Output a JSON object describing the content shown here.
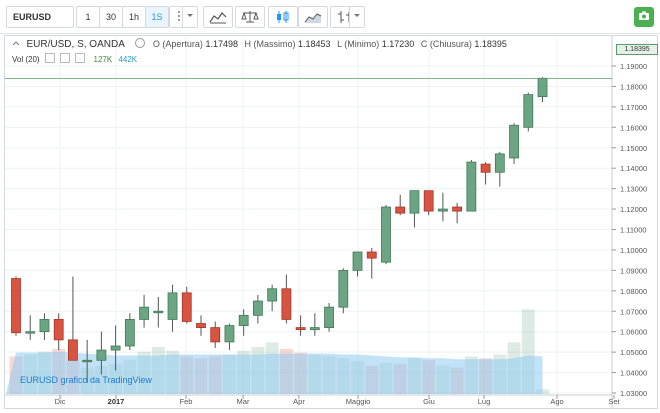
{
  "toolbar": {
    "symbol": "EURUSD",
    "intervals": [
      "1",
      "30",
      "1h",
      "1S"
    ],
    "active_interval": "1S",
    "tools": [
      "indicators-icon",
      "compare-icon",
      "candles-icon",
      "area-chart-icon",
      "bars-icon"
    ]
  },
  "legend": {
    "title": "EUR/USD, S, OANDA",
    "open_label": "O (Apertura)",
    "open": "1.17498",
    "high_label": "H (Massimo)",
    "high": "1.18453",
    "low_label": "L (Minimo)",
    "low": "1.17230",
    "close_label": "C (Chiusura)",
    "close": "1.18395"
  },
  "volume_legend": {
    "label": "Vol (20)",
    "value1": "127K",
    "value2": "442K"
  },
  "watermark": "EURUSD grafico da TradingView",
  "last_price": "1.18395",
  "colors": {
    "up": "#6ba583",
    "down": "#d75442",
    "volume_ma": "#8fcaf0",
    "accent": "#2196f3"
  },
  "chart_data": {
    "type": "candlestick",
    "title": "EUR/USD, S, OANDA",
    "y_axis_ticks": [
      "1.19000",
      "1.18000",
      "1.17000",
      "1.16000",
      "1.15000",
      "1.14000",
      "1.13000",
      "1.12000",
      "1.11000",
      "1.10000",
      "1.09000",
      "1.08000",
      "1.07000",
      "1.06000",
      "1.05000",
      "1.04000",
      "1.03000"
    ],
    "ylim": [
      1.025,
      1.19
    ],
    "x_axis_ticks": [
      {
        "label": "Dic",
        "bold": false
      },
      {
        "label": "2017",
        "bold": true
      },
      {
        "label": "Feb",
        "bold": false
      },
      {
        "label": "Mar",
        "bold": false
      },
      {
        "label": "Apr",
        "bold": false
      },
      {
        "label": "Maggio",
        "bold": false
      },
      {
        "label": "Giu",
        "bold": false
      },
      {
        "label": "Lug",
        "bold": false
      },
      {
        "label": "Ago",
        "bold": false
      },
      {
        "label": "Set",
        "bold": false
      }
    ],
    "candles": [
      {
        "o": 1.086,
        "h": 1.087,
        "l": 1.058,
        "c": 1.0595
      },
      {
        "o": 1.0595,
        "h": 1.068,
        "l": 1.056,
        "c": 1.06
      },
      {
        "o": 1.06,
        "h": 1.069,
        "l": 1.056,
        "c": 1.066
      },
      {
        "o": 1.066,
        "h": 1.069,
        "l": 1.051,
        "c": 1.056
      },
      {
        "o": 1.056,
        "h": 1.087,
        "l": 1.046,
        "c": 1.046
      },
      {
        "o": 1.046,
        "h": 1.056,
        "l": 1.035,
        "c": 1.046
      },
      {
        "o": 1.046,
        "h": 1.06,
        "l": 1.039,
        "c": 1.051
      },
      {
        "o": 1.051,
        "h": 1.063,
        "l": 1.041,
        "c": 1.053
      },
      {
        "o": 1.053,
        "h": 1.069,
        "l": 1.051,
        "c": 1.066
      },
      {
        "o": 1.066,
        "h": 1.078,
        "l": 1.062,
        "c": 1.072
      },
      {
        "o": 1.07,
        "h": 1.077,
        "l": 1.062,
        "c": 1.07
      },
      {
        "o": 1.066,
        "h": 1.083,
        "l": 1.06,
        "c": 1.079
      },
      {
        "o": 1.079,
        "h": 1.082,
        "l": 1.064,
        "c": 1.065
      },
      {
        "o": 1.064,
        "h": 1.068,
        "l": 1.058,
        "c": 1.062
      },
      {
        "o": 1.062,
        "h": 1.065,
        "l": 1.052,
        "c": 1.055
      },
      {
        "o": 1.055,
        "h": 1.064,
        "l": 1.051,
        "c": 1.063
      },
      {
        "o": 1.063,
        "h": 1.071,
        "l": 1.058,
        "c": 1.068
      },
      {
        "o": 1.068,
        "h": 1.078,
        "l": 1.064,
        "c": 1.075
      },
      {
        "o": 1.075,
        "h": 1.083,
        "l": 1.07,
        "c": 1.081
      },
      {
        "o": 1.081,
        "h": 1.088,
        "l": 1.064,
        "c": 1.066
      },
      {
        "o": 1.062,
        "h": 1.068,
        "l": 1.058,
        "c": 1.061
      },
      {
        "o": 1.061,
        "h": 1.069,
        "l": 1.058,
        "c": 1.062
      },
      {
        "o": 1.062,
        "h": 1.074,
        "l": 1.06,
        "c": 1.072
      },
      {
        "o": 1.072,
        "h": 1.091,
        "l": 1.069,
        "c": 1.09
      },
      {
        "o": 1.09,
        "h": 1.099,
        "l": 1.087,
        "c": 1.099
      },
      {
        "o": 1.099,
        "h": 1.101,
        "l": 1.086,
        "c": 1.096
      },
      {
        "o": 1.094,
        "h": 1.122,
        "l": 1.093,
        "c": 1.121
      },
      {
        "o": 1.121,
        "h": 1.127,
        "l": 1.117,
        "c": 1.118
      },
      {
        "o": 1.118,
        "h": 1.129,
        "l": 1.111,
        "c": 1.129
      },
      {
        "o": 1.129,
        "h": 1.129,
        "l": 1.117,
        "c": 1.119
      },
      {
        "o": 1.119,
        "h": 1.128,
        "l": 1.114,
        "c": 1.12
      },
      {
        "o": 1.121,
        "h": 1.123,
        "l": 1.113,
        "c": 1.119
      },
      {
        "o": 1.119,
        "h": 1.144,
        "l": 1.119,
        "c": 1.143
      },
      {
        "o": 1.142,
        "h": 1.143,
        "l": 1.132,
        "c": 1.138
      },
      {
        "o": 1.138,
        "h": 1.148,
        "l": 1.131,
        "c": 1.147
      },
      {
        "o": 1.145,
        "h": 1.162,
        "l": 1.142,
        "c": 1.161
      },
      {
        "o": 1.16,
        "h": 1.177,
        "l": 1.158,
        "c": 1.176
      },
      {
        "o": 1.175,
        "h": 1.1845,
        "l": 1.1723,
        "c": 1.184
      }
    ],
    "volume_note": "relative volume bars (0-1 scale of 442K max)",
    "volume": [
      0.4,
      0.42,
      0.45,
      0.48,
      0.35,
      0.28,
      0.3,
      0.32,
      0.36,
      0.45,
      0.5,
      0.46,
      0.4,
      0.38,
      0.4,
      0.42,
      0.46,
      0.5,
      0.55,
      0.48,
      0.44,
      0.42,
      0.4,
      0.38,
      0.35,
      0.3,
      0.33,
      0.32,
      0.38,
      0.36,
      0.3,
      0.28,
      0.4,
      0.38,
      0.42,
      0.55,
      0.9,
      0.05
    ],
    "volume_ma": [
      0.44,
      0.44,
      0.44,
      0.45,
      0.44,
      0.43,
      0.42,
      0.41,
      0.41,
      0.41,
      0.41,
      0.42,
      0.42,
      0.42,
      0.42,
      0.42,
      0.42,
      0.42,
      0.43,
      0.43,
      0.43,
      0.43,
      0.43,
      0.42,
      0.42,
      0.41,
      0.4,
      0.39,
      0.39,
      0.38,
      0.38,
      0.37,
      0.37,
      0.37,
      0.37,
      0.38,
      0.41,
      0.4
    ]
  }
}
